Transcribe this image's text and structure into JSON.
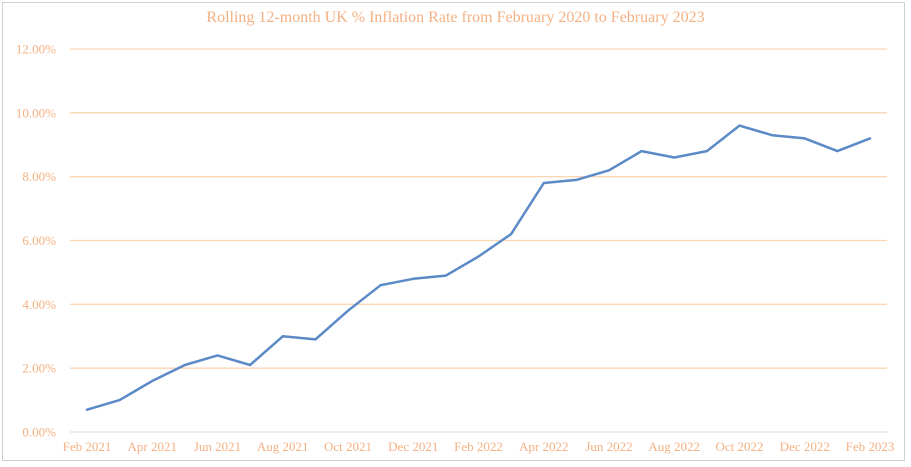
{
  "chart_data": {
    "type": "line",
    "title": "Rolling 12-month UK % Inflation Rate from February 2020 to February 2023",
    "xlabel": "",
    "ylabel": "",
    "ylim": [
      0,
      12
    ],
    "grid": true,
    "legend": null,
    "yticks": [
      "0.00%",
      "2.00%",
      "4.00%",
      "6.00%",
      "8.00%",
      "10.00%",
      "12.00%"
    ],
    "xtick_labels": [
      "Feb 2021",
      "Apr 2021",
      "Jun 2021",
      "Aug 2021",
      "Oct 2021",
      "Dec 2021",
      "Feb 2022",
      "Apr 2022",
      "Jun 2022",
      "Aug 2022",
      "Oct 2022",
      "Dec 2022",
      "Feb 2023"
    ],
    "categories": [
      "Feb 2021",
      "Mar 2021",
      "Apr 2021",
      "May 2021",
      "Jun 2021",
      "Jul 2021",
      "Aug 2021",
      "Sep 2021",
      "Oct 2021",
      "Nov 2021",
      "Dec 2021",
      "Jan 2022",
      "Feb 2022",
      "Mar 2022",
      "Apr 2022",
      "May 2022",
      "Jun 2022",
      "Jul 2022",
      "Aug 2022",
      "Sep 2022",
      "Oct 2022",
      "Nov 2022",
      "Dec 2022",
      "Jan 2023",
      "Feb 2023"
    ],
    "series": [
      {
        "name": "UK inflation rate (%)",
        "color": "#5b8ac6",
        "values": [
          0.7,
          1.0,
          1.6,
          2.1,
          2.4,
          2.1,
          3.0,
          2.9,
          3.8,
          4.6,
          4.8,
          4.9,
          5.5,
          6.2,
          7.8,
          7.9,
          8.2,
          8.8,
          8.6,
          8.8,
          9.6,
          9.3,
          9.2,
          8.8,
          9.2
        ]
      }
    ]
  },
  "colors": {
    "text": "#f4b183",
    "gridline": "#fcd5b4",
    "baseline": "#e0e0e0",
    "line": "#5b8ac6"
  }
}
